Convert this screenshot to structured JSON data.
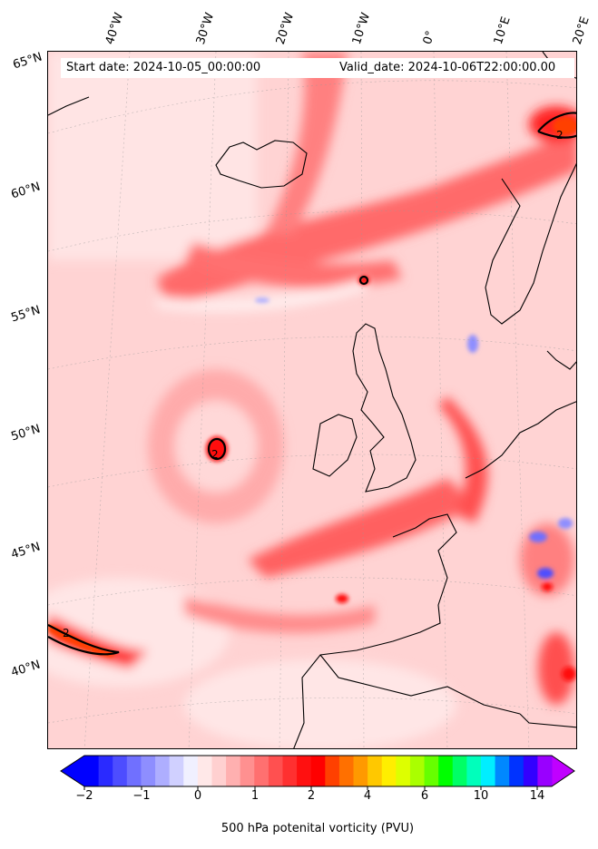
{
  "header": {
    "start_date": "Start date: 2024-10-05_00:00:00",
    "valid_date": "Valid_date: 2024-10-06T22:00:00.00"
  },
  "longitude_labels": [
    "40°W",
    "30°W",
    "20°W",
    "10°W",
    "0°",
    "10°E",
    "20°E"
  ],
  "latitude_labels": [
    "65°N",
    "60°N",
    "55°N",
    "50°N",
    "45°N",
    "40°N"
  ],
  "contour_label": "2",
  "colorbar": {
    "title": "500 hPa potenital vorticity (PVU)",
    "ticks": [
      "−2",
      "−1",
      "0",
      "1",
      "2",
      "4",
      "6",
      "10",
      "14"
    ],
    "colors": [
      "#0000ff",
      "#2a2aff",
      "#4d4dff",
      "#7070ff",
      "#8e8eff",
      "#aeaeff",
      "#d0d0ff",
      "#f0f0ff",
      "#ffe8e8",
      "#ffd0d0",
      "#ffb0b0",
      "#ff9090",
      "#ff7070",
      "#ff5050",
      "#ff3030",
      "#ff1010",
      "#ff0000",
      "#ff4000",
      "#ff7000",
      "#ff9900",
      "#ffc800",
      "#ffee00",
      "#ddff00",
      "#aaff00",
      "#66ff00",
      "#00ff00",
      "#00ff66",
      "#00ffbb",
      "#00eeff",
      "#0088ff",
      "#0033ff",
      "#3300ff",
      "#9900ff"
    ],
    "under_color": "#0000ff",
    "over_color": "#c000ff"
  }
}
